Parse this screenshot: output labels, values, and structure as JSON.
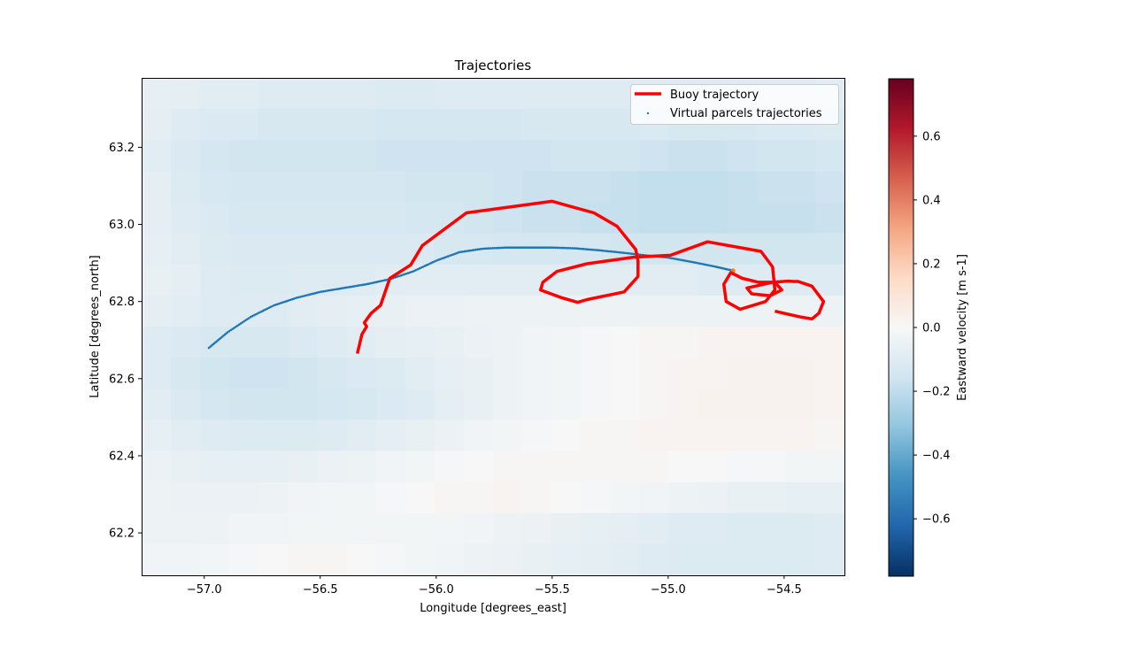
{
  "chart_data": {
    "type": "line",
    "title": "Trajectories",
    "xlabel": "Longitude [degrees_east]",
    "ylabel": "Latitude [degrees_north]",
    "xlim": [
      -57.27,
      -54.24
    ],
    "ylim": [
      62.09,
      63.38
    ],
    "xticks": [
      -57.0,
      -56.5,
      -56.0,
      -55.5,
      -55.0,
      -54.5
    ],
    "xtick_labels": [
      "−57.0",
      "−56.5",
      "−56.0",
      "−55.5",
      "−55.0",
      "−54.5"
    ],
    "yticks": [
      62.2,
      62.4,
      62.6,
      62.8,
      63.0,
      63.2
    ],
    "ytick_labels": [
      "62.2",
      "62.4",
      "62.6",
      "62.8",
      "63.0",
      "63.2"
    ],
    "legend_position": "top-right",
    "series": [
      {
        "name": "Buoy trajectory",
        "kind": "line",
        "color": "#ff0000",
        "x": [
          -56.34,
          -56.32,
          -56.3,
          -56.31,
          -56.28,
          -56.24,
          -56.2,
          -56.11,
          -56.06,
          -55.87,
          -55.5,
          -55.32,
          -55.22,
          -55.14,
          -55.13,
          -55.13,
          -55.19,
          -55.35,
          -55.39,
          -55.46,
          -55.55,
          -55.54,
          -55.48,
          -55.35,
          -55.15,
          -54.99,
          -54.83,
          -54.6,
          -54.55,
          -54.54,
          -54.58,
          -54.69,
          -54.75,
          -54.76,
          -54.73,
          -54.68,
          -54.61,
          -54.54,
          -54.51,
          -54.56,
          -54.64,
          -54.66,
          -54.55,
          -54.48,
          -54.46,
          -54.44,
          -54.38,
          -54.33,
          -54.35,
          -54.38,
          -54.43,
          -54.54
        ],
        "y": [
          62.665,
          62.715,
          62.735,
          62.745,
          62.77,
          62.79,
          62.86,
          62.895,
          62.945,
          63.03,
          63.06,
          63.03,
          62.995,
          62.935,
          62.905,
          62.865,
          62.825,
          62.805,
          62.798,
          62.81,
          62.83,
          62.85,
          62.878,
          62.898,
          62.915,
          62.92,
          62.955,
          62.93,
          62.89,
          62.83,
          62.8,
          62.78,
          62.8,
          62.845,
          62.875,
          62.86,
          62.85,
          62.85,
          62.83,
          62.815,
          62.82,
          62.835,
          62.85,
          62.853,
          62.852,
          62.852,
          62.84,
          62.8,
          62.77,
          62.755,
          62.76,
          62.775
        ]
      },
      {
        "name": "Virtual parcels trajectories",
        "kind": "scatter",
        "color": "#1f77b4",
        "x": [
          -56.98,
          -56.9,
          -56.8,
          -56.7,
          -56.6,
          -56.5,
          -56.4,
          -56.3,
          -56.2,
          -56.1,
          -56.0,
          -55.9,
          -55.8,
          -55.7,
          -55.6,
          -55.5,
          -55.4,
          -55.3,
          -55.2,
          -55.1,
          -55.0,
          -54.9,
          -54.8,
          -54.72
        ],
        "y": [
          62.68,
          62.72,
          62.76,
          62.79,
          62.81,
          62.825,
          62.835,
          62.845,
          62.858,
          62.878,
          62.906,
          62.928,
          62.937,
          62.94,
          62.94,
          62.94,
          62.938,
          62.933,
          62.927,
          62.92,
          62.914,
          62.903,
          62.891,
          62.88
        ]
      }
    ],
    "colorbar": {
      "label": "Eastward velocity [m s-1]",
      "range": [
        -0.78,
        0.78
      ],
      "ticks": [
        -0.6,
        -0.4,
        -0.2,
        0.0,
        0.2,
        0.4,
        0.6
      ],
      "tick_labels": [
        "−0.6",
        "−0.4",
        "−0.2",
        "0.0",
        "0.2",
        "0.4",
        "0.6"
      ],
      "colormap": "RdBu_r"
    },
    "background_field": {
      "description_rows": "eastward velocity per latitude band (north to south)",
      "rows": [
        [
          -0.07,
          -0.08,
          -0.09,
          -0.09,
          -0.1,
          -0.1,
          -0.1,
          -0.1,
          -0.11,
          -0.11,
          -0.1,
          -0.1,
          -0.1,
          -0.1,
          -0.1,
          -0.1,
          -0.1,
          -0.1,
          -0.1,
          -0.1,
          -0.1,
          -0.1,
          -0.1,
          -0.09
        ],
        [
          -0.08,
          -0.1,
          -0.12,
          -0.12,
          -0.13,
          -0.13,
          -0.13,
          -0.13,
          -0.14,
          -0.14,
          -0.14,
          -0.14,
          -0.14,
          -0.13,
          -0.13,
          -0.13,
          -0.13,
          -0.12,
          -0.13,
          -0.13,
          -0.13,
          -0.12,
          -0.12,
          -0.11
        ],
        [
          -0.09,
          -0.12,
          -0.14,
          -0.15,
          -0.15,
          -0.15,
          -0.15,
          -0.15,
          -0.16,
          -0.16,
          -0.16,
          -0.16,
          -0.16,
          -0.16,
          -0.15,
          -0.15,
          -0.15,
          -0.16,
          -0.17,
          -0.17,
          -0.16,
          -0.15,
          -0.15,
          -0.14
        ],
        [
          -0.08,
          -0.11,
          -0.13,
          -0.14,
          -0.14,
          -0.14,
          -0.14,
          -0.14,
          -0.14,
          -0.15,
          -0.15,
          -0.15,
          -0.16,
          -0.17,
          -0.17,
          -0.17,
          -0.18,
          -0.19,
          -0.19,
          -0.19,
          -0.18,
          -0.17,
          -0.17,
          -0.16
        ],
        [
          -0.08,
          -0.1,
          -0.12,
          -0.13,
          -0.13,
          -0.13,
          -0.13,
          -0.13,
          -0.13,
          -0.14,
          -0.14,
          -0.15,
          -0.16,
          -0.17,
          -0.17,
          -0.18,
          -0.18,
          -0.19,
          -0.19,
          -0.19,
          -0.18,
          -0.18,
          -0.18,
          -0.17
        ],
        [
          -0.07,
          -0.09,
          -0.11,
          -0.12,
          -0.12,
          -0.12,
          -0.12,
          -0.12,
          -0.12,
          -0.12,
          -0.13,
          -0.13,
          -0.14,
          -0.14,
          -0.14,
          -0.14,
          -0.15,
          -0.15,
          -0.15,
          -0.15,
          -0.15,
          -0.15,
          -0.15,
          -0.15
        ],
        [
          -0.06,
          -0.08,
          -0.1,
          -0.11,
          -0.11,
          -0.1,
          -0.1,
          -0.1,
          -0.09,
          -0.09,
          -0.09,
          -0.09,
          -0.09,
          -0.09,
          -0.09,
          -0.09,
          -0.09,
          -0.09,
          -0.09,
          -0.1,
          -0.1,
          -0.1,
          -0.1,
          -0.1
        ],
        [
          -0.08,
          -0.09,
          -0.1,
          -0.1,
          -0.1,
          -0.09,
          -0.08,
          -0.07,
          -0.06,
          -0.05,
          -0.05,
          -0.04,
          -0.04,
          -0.04,
          -0.04,
          -0.04,
          -0.04,
          -0.04,
          -0.04,
          -0.04,
          -0.04,
          -0.04,
          -0.04,
          -0.04
        ],
        [
          -0.1,
          -0.12,
          -0.13,
          -0.13,
          -0.13,
          -0.12,
          -0.1,
          -0.09,
          -0.08,
          -0.07,
          -0.06,
          -0.05,
          -0.04,
          -0.03,
          -0.02,
          -0.01,
          0.0,
          0.01,
          0.01,
          0.02,
          0.02,
          0.02,
          0.02,
          0.02
        ],
        [
          -0.1,
          -0.13,
          -0.15,
          -0.16,
          -0.16,
          -0.15,
          -0.13,
          -0.12,
          -0.11,
          -0.09,
          -0.07,
          -0.06,
          -0.04,
          -0.03,
          -0.02,
          -0.01,
          0.0,
          0.01,
          0.02,
          0.02,
          0.03,
          0.03,
          0.03,
          0.02
        ],
        [
          -0.09,
          -0.12,
          -0.14,
          -0.15,
          -0.15,
          -0.15,
          -0.14,
          -0.13,
          -0.12,
          -0.1,
          -0.08,
          -0.06,
          -0.04,
          -0.03,
          -0.02,
          -0.01,
          0.0,
          0.01,
          0.02,
          0.03,
          0.03,
          0.03,
          0.03,
          0.02
        ],
        [
          -0.07,
          -0.09,
          -0.1,
          -0.11,
          -0.11,
          -0.11,
          -0.1,
          -0.09,
          -0.08,
          -0.06,
          -0.05,
          -0.03,
          -0.02,
          -0.01,
          0.0,
          0.01,
          0.01,
          0.02,
          0.02,
          0.02,
          0.02,
          0.02,
          0.02,
          0.01
        ],
        [
          -0.05,
          -0.06,
          -0.07,
          -0.07,
          -0.07,
          -0.06,
          -0.05,
          -0.04,
          -0.03,
          -0.02,
          -0.01,
          0.0,
          0.01,
          0.01,
          0.01,
          0.01,
          0.01,
          0.01,
          0.0,
          0.0,
          -0.01,
          -0.01,
          -0.02,
          -0.02
        ],
        [
          -0.04,
          -0.05,
          -0.05,
          -0.05,
          -0.04,
          -0.03,
          -0.02,
          -0.02,
          -0.01,
          0.0,
          0.01,
          0.01,
          0.02,
          0.01,
          0.0,
          -0.01,
          -0.02,
          -0.03,
          -0.04,
          -0.05,
          -0.06,
          -0.06,
          -0.07,
          -0.07
        ],
        [
          -0.04,
          -0.04,
          -0.04,
          -0.03,
          -0.03,
          -0.02,
          -0.02,
          -0.02,
          -0.02,
          -0.02,
          -0.02,
          -0.03,
          -0.04,
          -0.05,
          -0.06,
          -0.07,
          -0.08,
          -0.09,
          -0.1,
          -0.1,
          -0.11,
          -0.11,
          -0.11,
          -0.1
        ],
        [
          -0.03,
          -0.03,
          -0.02,
          -0.01,
          0.0,
          0.01,
          0.01,
          0.0,
          -0.01,
          -0.02,
          -0.03,
          -0.04,
          -0.05,
          -0.06,
          -0.07,
          -0.08,
          -0.09,
          -0.1,
          -0.11,
          -0.11,
          -0.11,
          -0.11,
          -0.11,
          -0.1
        ]
      ]
    }
  }
}
